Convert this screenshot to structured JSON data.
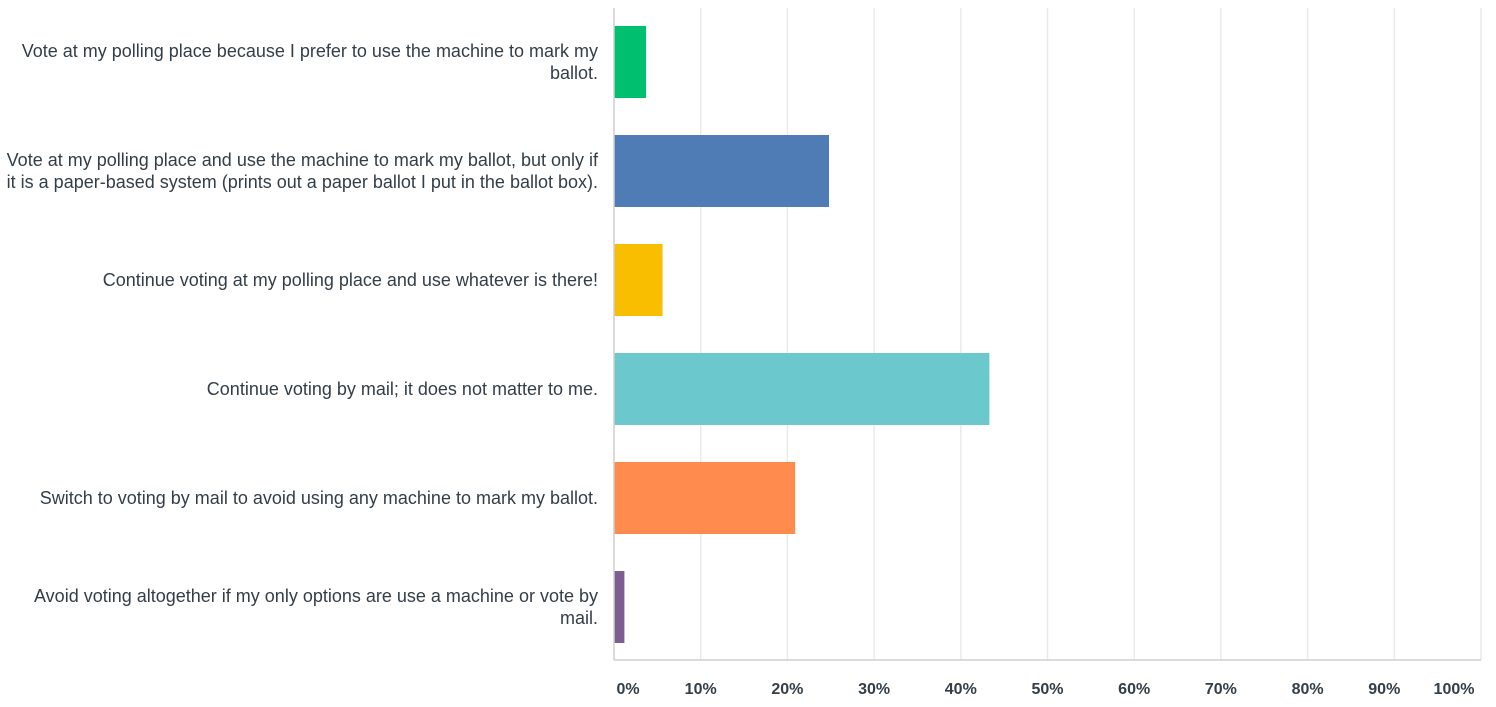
{
  "chart_data": {
    "type": "bar",
    "orientation": "horizontal",
    "categories": [
      "Vote at my polling place because I prefer to use the machine to mark my ballot.",
      "Vote at my polling place and use the machine to mark my ballot, but only if it is a paper-based system (prints out a paper ballot I put in the ballot box).",
      "Continue voting at my polling place and use whatever is there!",
      "Continue voting by mail; it does not matter to me.",
      "Switch to voting by mail to avoid using any machine to mark my ballot.",
      "Avoid voting altogether if my only options are use a machine or vote by mail."
    ],
    "values": [
      3.7,
      24.8,
      5.6,
      43.3,
      20.9,
      1.2
    ],
    "colors": [
      "#00bf6f",
      "#507cb6",
      "#f9be00",
      "#6bc8cd",
      "#ff8b4f",
      "#7d5e90"
    ],
    "xlim": [
      0,
      100
    ],
    "xticks": [
      "0%",
      "10%",
      "20%",
      "30%",
      "40%",
      "50%",
      "60%",
      "70%",
      "80%",
      "90%",
      "100%"
    ],
    "grid": true,
    "title": "",
    "xlabel": "",
    "ylabel": ""
  }
}
